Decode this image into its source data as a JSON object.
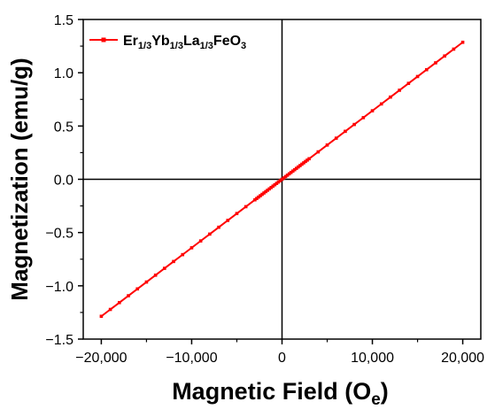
{
  "chart_data": {
    "type": "line",
    "title": "",
    "xlabel": "Magnetic Field (O",
    "xlabel_sub": "e",
    "xlabel_end": ")",
    "ylabel": "Magnetization (emu/g)",
    "xlim": [
      -22000,
      22000
    ],
    "ylim": [
      -1.5,
      1.5
    ],
    "x_ticks": [
      -20000,
      -10000,
      0,
      10000,
      20000
    ],
    "x_tick_labels": [
      "−20,000",
      "−10,000",
      "0",
      "10,000",
      "20,000"
    ],
    "y_ticks": [
      -1.5,
      -1.0,
      -0.5,
      0.0,
      0.5,
      1.0,
      1.5
    ],
    "y_tick_labels": [
      "−1.5",
      "−1.0",
      "−0.5",
      "0.0",
      "0.5",
      "1.0",
      "1.5"
    ],
    "grid": false,
    "legend_position": "top-left",
    "series": [
      {
        "legend_parts": [
          {
            "t": "Er",
            "s": "base"
          },
          {
            "t": "1/3",
            "s": "sub"
          },
          {
            "t": "Yb",
            "s": "base"
          },
          {
            "t": "1/3",
            "s": "sub"
          },
          {
            "t": "La",
            "s": "base"
          },
          {
            "t": "1/3",
            "s": "sub"
          },
          {
            "t": "FeO",
            "s": "base"
          },
          {
            "t": "3",
            "s": "sub"
          }
        ],
        "color": "#ff0000",
        "slope": 6.43e-05,
        "x_range": [
          -20000,
          20000
        ]
      }
    ]
  }
}
